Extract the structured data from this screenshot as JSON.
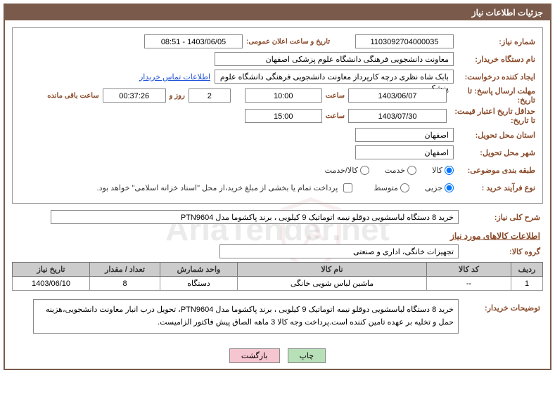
{
  "panel_title": "جزئیات اطلاعات نیاز",
  "labels": {
    "need_no": "شماره نیاز:",
    "announce": "تاریخ و ساعت اعلان عمومی:",
    "buyer_org": "نام دستگاه خریدار:",
    "creator": "ایجاد کننده درخواست:",
    "contact_link": "اطلاعات تماس خریدار",
    "deadline": "مهلت ارسال پاسخ: تا تاریخ:",
    "time": "ساعت",
    "days_and": "روز و",
    "remaining": "ساعت باقی مانده",
    "validity": "حداقل تاریخ اعتبار قیمت: تا تاریخ:",
    "province": "استان محل تحویل:",
    "city": "شهر محل تحویل:",
    "category": "طبقه بندی موضوعی:",
    "purchase_type": "نوع فرآیند خرید :",
    "payment_note": "پرداخت تمام یا بخشی از مبلغ خرید،از محل \"اسناد خزانه اسلامی\" خواهد بود.",
    "overall_desc": "شرح کلی نیاز:",
    "goods_info": "اطلاعات کالاهای مورد نیاز",
    "goods_group": "گروه کالا:",
    "buyer_remarks": "توضیحات خریدار:"
  },
  "values": {
    "need_no": "1103092704000035",
    "announce": "1403/06/05 - 08:51",
    "buyer_org": "معاونت دانشجویی فرهنگی دانشگاه علوم پزشکی اصفهان",
    "creator": "بابک شاه نظری درچه کارپرداز معاونت دانشجویی فرهنگی دانشگاه علوم پزشکی",
    "deadline_date": "1403/06/07",
    "deadline_time": "10:00",
    "days_left": "2",
    "time_left": "00:37:26",
    "validity_date": "1403/07/30",
    "validity_time": "15:00",
    "province": "اصفهان",
    "city": "اصفهان",
    "overall_desc": "خرید 8 دستگاه لباسشویی دوقلو نیمه اتوماتیک 9 کیلویی ، برند پاکشوما مدل    PTN9604",
    "goods_group": "تجهیزات خانگی، اداری و صنعتی",
    "remarks": "خرید 8 دستگاه لباسشویی دوقلو نیمه اتوماتیک 9 کیلویی ، برند پاکشوما مدل PTN9604، تحویل درب انبار معاونت دانشجویی،هزینه حمل و تخلیه بر عهده تامین کننده است.پرداخت وجه کالا 3 ماهه الصاق پیش فاکتور الزامیست."
  },
  "category_opts": {
    "goods": "کالا",
    "service": "خدمت",
    "goods_service": "کالا/خدمت"
  },
  "purchase_opts": {
    "minor": "جزیی",
    "medium": "متوسط"
  },
  "table": {
    "headers": {
      "row": "ردیف",
      "code": "کد کالا",
      "name": "نام کالا",
      "unit": "واحد شمارش",
      "qty": "تعداد / مقدار",
      "date": "تاریخ نیاز"
    },
    "rows": [
      {
        "row": "1",
        "code": "--",
        "name": "ماشین لباس شویی خانگی",
        "unit": "دستگاه",
        "qty": "8",
        "date": "1403/06/10"
      }
    ]
  },
  "buttons": {
    "print": "چاپ",
    "back": "بازگشت"
  },
  "watermark": "AriaTender.net"
}
